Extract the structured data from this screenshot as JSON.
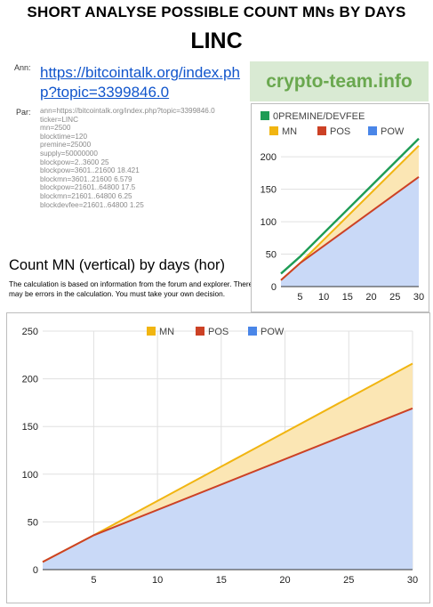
{
  "header": {
    "title": "SHORT ANALYSE POSSIBLE COUNT MNs BY DAYS",
    "coin": "LINC"
  },
  "ann": {
    "label": "Ann:",
    "link": "https://bitcointalk.org/index.php?topic=3399846.0"
  },
  "par": {
    "label": "Par:",
    "lines": [
      "ann=https://bitcointalk.org/index.php?topic=3399846.0",
      "ticker=LINC",
      "mn=2500",
      "blocktime=120",
      "premine=25000",
      "supply=50000000",
      "blockpow=2..3600 25",
      "blockpow=3601..21600 18.421",
      "blockmn=3601..21600 6.579",
      "blockpow=21601..64800 17.5",
      "blockmn=21601..64800 6.25",
      "blockdevfee=21601..64800 1.25"
    ]
  },
  "brand": "crypto-team.info",
  "chart_heading": "Count MN (vertical) by days (hor)",
  "disclaimer": "The calculation is based on information from the forum and explorer. There may be errors in the calculation. You must take your own decision.",
  "colors": {
    "mn": "#f1b511",
    "pos": "#cc4125",
    "pow": "#4a86e8",
    "premine": "#1e9c55",
    "mn_fill": "#fbe6b4",
    "pow_fill": "#c9d9f7",
    "axis": "#333333",
    "grid": "#e0e0e0"
  },
  "chart_data": [
    {
      "id": "small",
      "type": "area",
      "x_ticks": [
        5,
        10,
        15,
        20,
        25,
        30
      ],
      "y_ticks": [
        0,
        50,
        100,
        150,
        200
      ],
      "xlim": [
        1,
        30
      ],
      "ylim": [
        0,
        240
      ],
      "legend_position": "top",
      "legend": [
        "0PREMINE/DEVFEE",
        "MN",
        "POS",
        "POW"
      ],
      "x": [
        1,
        5,
        30
      ],
      "series": [
        {
          "name": "0PREMINE/DEVFEE",
          "key": "premine",
          "values": [
            20,
            46,
            228
          ]
        },
        {
          "name": "MN",
          "key": "mn",
          "values": [
            10,
            36,
            217
          ]
        },
        {
          "name": "POS",
          "key": "pos",
          "values": [
            10,
            36,
            169
          ]
        },
        {
          "name": "POW",
          "key": "pow",
          "values": [
            10,
            36,
            169
          ]
        }
      ]
    },
    {
      "id": "big",
      "type": "area",
      "x_ticks": [
        5,
        10,
        15,
        20,
        25,
        30
      ],
      "y_ticks": [
        0,
        50,
        100,
        150,
        200,
        250
      ],
      "xlim": [
        1,
        30
      ],
      "ylim": [
        0,
        250
      ],
      "legend_position": "top",
      "legend": [
        "MN",
        "POS",
        "POW"
      ],
      "x": [
        1,
        5,
        30
      ],
      "series": [
        {
          "name": "MN",
          "key": "mn",
          "values": [
            8,
            36,
            216
          ]
        },
        {
          "name": "POS",
          "key": "pos",
          "values": [
            8,
            36,
            169
          ]
        },
        {
          "name": "POW",
          "key": "pow",
          "values": [
            8,
            36,
            169
          ]
        }
      ]
    }
  ]
}
